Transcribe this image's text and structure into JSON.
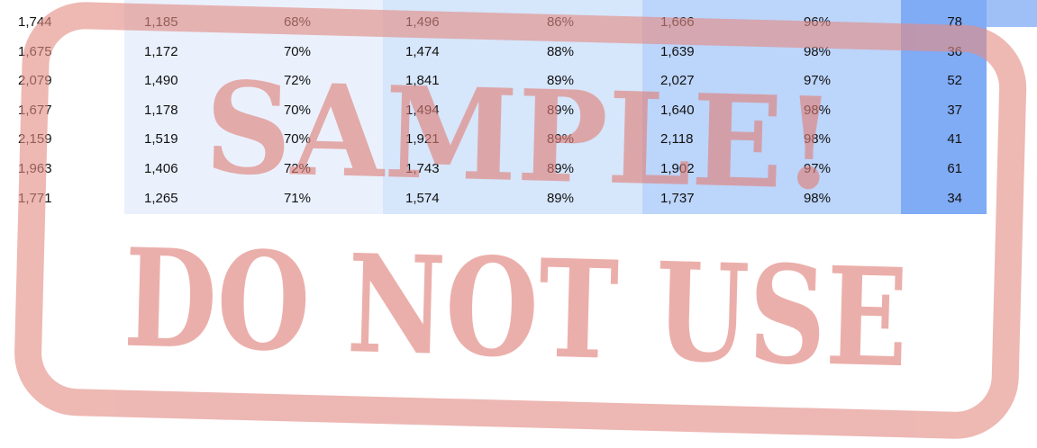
{
  "table": {
    "rows": [
      [
        "1,744",
        "1,185",
        "68%",
        "1,496",
        "86%",
        "1,666",
        "96%",
        "78"
      ],
      [
        "1,675",
        "1,172",
        "70%",
        "1,474",
        "88%",
        "1,639",
        "98%",
        "36"
      ],
      [
        "2,079",
        "1,490",
        "72%",
        "1,841",
        "89%",
        "2,027",
        "97%",
        "52"
      ],
      [
        "1,677",
        "1,178",
        "70%",
        "1,494",
        "89%",
        "1,640",
        "98%",
        "37"
      ],
      [
        "2,159",
        "1,519",
        "70%",
        "1,921",
        "89%",
        "2,118",
        "98%",
        "41"
      ],
      [
        "1,963",
        "1,406",
        "72%",
        "1,743",
        "89%",
        "1,902",
        "97%",
        "61"
      ],
      [
        "1,771",
        "1,265",
        "71%",
        "1,574",
        "89%",
        "1,737",
        "98%",
        "34"
      ]
    ]
  },
  "watermark": {
    "line1": "SAMPLE!",
    "line2": "DO NOT USE"
  }
}
